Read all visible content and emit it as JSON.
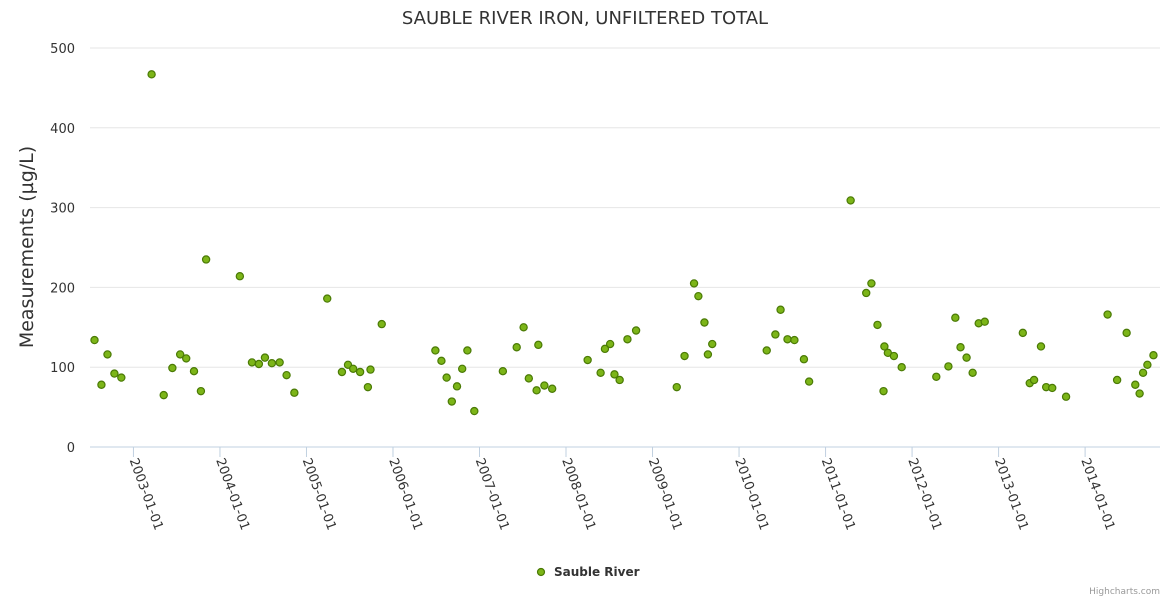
{
  "chart_data": {
    "type": "scatter",
    "title": "SAUBLE RIVER IRON, UNFILTERED TOTAL",
    "xlabel": "",
    "ylabel": "Measurements (µg/L)",
    "ylim": [
      0,
      500
    ],
    "yticks": [
      "0",
      "100",
      "200",
      "300",
      "400",
      "500"
    ],
    "xlim": [
      2002.4979,
      2014.8657
    ],
    "xticks": [
      {
        "label": "2003-01-01",
        "value": 2003.0
      },
      {
        "label": "2004-01-01",
        "value": 2004.0
      },
      {
        "label": "2005-01-01",
        "value": 2005.0
      },
      {
        "label": "2006-01-01",
        "value": 2006.0
      },
      {
        "label": "2007-01-01",
        "value": 2007.0
      },
      {
        "label": "2008-01-01",
        "value": 2008.0
      },
      {
        "label": "2009-01-01",
        "value": 2009.0
      },
      {
        "label": "2010-01-01",
        "value": 2010.0
      },
      {
        "label": "2011-01-01",
        "value": 2011.0
      },
      {
        "label": "2012-01-01",
        "value": 2012.0
      },
      {
        "label": "2013-01-01",
        "value": 2013.0
      },
      {
        "label": "2014-01-01",
        "value": 2014.0
      }
    ],
    "grid": true,
    "legend": "bottom-center",
    "series": [
      {
        "name": "Sauble River",
        "color": "#7cb518",
        "x": [
          2002.55,
          2002.63,
          2002.7,
          2002.78,
          2002.86,
          2003.21,
          2003.35,
          2003.45,
          2003.54,
          2003.61,
          2003.7,
          2003.78,
          2003.84,
          2004.23,
          2004.37,
          2004.45,
          2004.52,
          2004.6,
          2004.69,
          2004.77,
          2004.86,
          2005.24,
          2005.41,
          2005.48,
          2005.54,
          2005.62,
          2005.71,
          2005.74,
          2005.87,
          2006.49,
          2006.56,
          2006.62,
          2006.68,
          2006.74,
          2006.8,
          2006.86,
          2006.94,
          2007.27,
          2007.43,
          2007.51,
          2007.57,
          2007.66,
          2007.68,
          2007.75,
          2007.84,
          2008.25,
          2008.4,
          2008.45,
          2008.51,
          2008.56,
          2008.62,
          2008.71,
          2008.81,
          2009.28,
          2009.37,
          2009.48,
          2009.53,
          2009.6,
          2009.64,
          2009.69,
          2010.32,
          2010.42,
          2010.48,
          2010.56,
          2010.64,
          2010.75,
          2010.81,
          2011.29,
          2011.47,
          2011.53,
          2011.6,
          2011.67,
          2011.68,
          2011.72,
          2011.79,
          2011.88,
          2012.28,
          2012.42,
          2012.5,
          2012.56,
          2012.63,
          2012.7,
          2012.77,
          2012.84,
          2013.28,
          2013.36,
          2013.41,
          2013.49,
          2013.55,
          2013.62,
          2013.78,
          2014.26,
          2014.37,
          2014.48,
          2014.58,
          2014.63,
          2014.67,
          2014.72,
          2014.79
        ],
        "y": [
          134,
          78,
          116,
          92,
          87,
          467,
          65,
          99,
          116,
          111,
          95,
          70,
          235,
          214,
          106,
          104,
          112,
          105,
          106,
          90,
          68,
          186,
          94,
          103,
          98,
          94,
          75,
          97,
          154,
          121,
          108,
          87,
          57,
          76,
          98,
          121,
          45,
          95,
          125,
          150,
          86,
          71,
          128,
          77,
          73,
          109,
          93,
          123,
          129,
          91,
          84,
          135,
          146,
          75,
          114,
          205,
          189,
          156,
          116,
          129,
          121,
          141,
          172,
          135,
          134,
          110,
          82,
          309,
          193,
          205,
          153,
          70,
          126,
          118,
          114,
          100,
          88,
          101,
          162,
          125,
          112,
          93,
          155,
          157,
          143,
          80,
          84,
          126,
          75,
          74,
          63,
          166,
          84,
          143,
          78,
          67,
          93,
          103,
          115
        ]
      }
    ],
    "credits": "Highcharts.com"
  }
}
